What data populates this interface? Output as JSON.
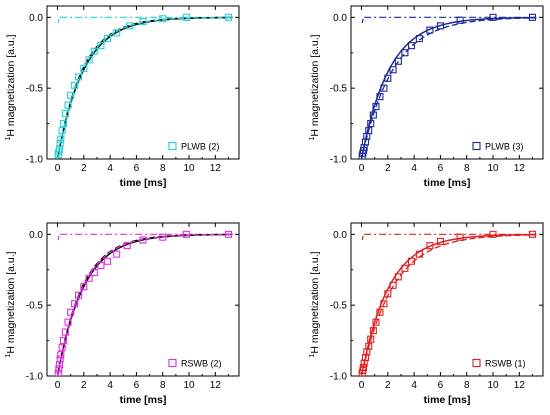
{
  "chart_data": [
    {
      "type": "scatter",
      "panel": "top-left",
      "legend_label": "PLWB (2)",
      "legend_position": "bottom-right",
      "color": "#22d3d8",
      "xlabel": "time [ms]",
      "ylabel_sup": "1",
      "ylabel": "H magnetization [a.u.]",
      "xlim": [
        -0.8,
        13.8
      ],
      "ylim": [
        -1.0,
        0.08
      ],
      "xticks": [
        "0",
        "2",
        "4",
        "6",
        "8",
        "10",
        "12"
      ],
      "yticks": [
        "-1.0",
        "-0.5",
        "0.0"
      ],
      "points": {
        "x": [
          0.05,
          0.1,
          0.15,
          0.2,
          0.25,
          0.35,
          0.45,
          0.6,
          0.8,
          1.0,
          1.3,
          1.6,
          2.0,
          2.4,
          2.8,
          3.3,
          3.8,
          4.5,
          5.5,
          6.5,
          8.0,
          9.8,
          13.0
        ],
        "y": [
          -0.97,
          -0.95,
          -0.93,
          -0.89,
          -0.86,
          -0.8,
          -0.75,
          -0.68,
          -0.62,
          -0.55,
          -0.48,
          -0.42,
          -0.36,
          -0.3,
          -0.24,
          -0.2,
          -0.15,
          -0.11,
          -0.06,
          -0.03,
          -0.01,
          0.0,
          0.0
        ]
      },
      "fit_solid_tau": 2.0,
      "fit_dashed_tau": 1.9,
      "dashdot_level": 0.0,
      "dashdot_xstart": 0.2
    },
    {
      "type": "scatter",
      "panel": "top-right",
      "legend_label": "PLWB (3)",
      "legend_position": "bottom-right",
      "color": "#1c2a9a",
      "xlabel": "time [ms]",
      "ylabel_sup": "1",
      "ylabel": "H magnetization [a.u.]",
      "xlim": [
        -0.8,
        13.8
      ],
      "ylim": [
        -1.0,
        0.08
      ],
      "xticks": [
        "0",
        "2",
        "4",
        "6",
        "8",
        "10",
        "12"
      ],
      "yticks": [
        "-1.0",
        "-0.5",
        "0.0"
      ],
      "points": {
        "x": [
          0.05,
          0.1,
          0.15,
          0.2,
          0.3,
          0.4,
          0.55,
          0.7,
          0.9,
          1.1,
          1.4,
          1.7,
          2.0,
          2.4,
          2.8,
          3.3,
          3.8,
          4.4,
          5.2,
          6.0,
          7.5,
          10.0,
          13.0
        ],
        "y": [
          -0.98,
          -0.96,
          -0.94,
          -0.92,
          -0.88,
          -0.84,
          -0.8,
          -0.75,
          -0.69,
          -0.63,
          -0.56,
          -0.5,
          -0.43,
          -0.37,
          -0.31,
          -0.25,
          -0.2,
          -0.15,
          -0.09,
          -0.06,
          -0.02,
          0.0,
          0.0
        ]
      },
      "fit_solid_tau": 2.1,
      "fit_dashed_tau": 2.4,
      "dashdot_level": 0.0,
      "dashdot_xstart": 0.2
    },
    {
      "type": "scatter",
      "panel": "bottom-left",
      "legend_label": "RSWB (2)",
      "legend_position": "bottom-right",
      "color": "#e030e0",
      "xlabel": "time [ms]",
      "ylabel_sup": "1",
      "ylabel": "H magnetization [a.u.]",
      "xlim": [
        -0.8,
        13.8
      ],
      "ylim": [
        -1.0,
        0.08
      ],
      "xticks": [
        "0",
        "2",
        "4",
        "6",
        "8",
        "10",
        "12"
      ],
      "yticks": [
        "-1.0",
        "-0.5",
        "0.0"
      ],
      "points": {
        "x": [
          0.05,
          0.1,
          0.15,
          0.2,
          0.25,
          0.35,
          0.45,
          0.6,
          0.8,
          1.0,
          1.3,
          1.6,
          2.0,
          2.4,
          2.8,
          3.3,
          3.8,
          4.5,
          5.3,
          6.5,
          8.0,
          9.8,
          13.0
        ],
        "y": [
          -0.98,
          -0.95,
          -0.92,
          -0.88,
          -0.85,
          -0.8,
          -0.75,
          -0.69,
          -0.62,
          -0.55,
          -0.49,
          -0.43,
          -0.37,
          -0.31,
          -0.27,
          -0.22,
          -0.19,
          -0.14,
          -0.08,
          -0.04,
          -0.02,
          0.0,
          0.0
        ]
      },
      "fit_solid_tau": 2.0,
      "fit_dashed_tau": 1.9,
      "dashdot_level": 0.0,
      "dashdot_xstart": 0.2
    },
    {
      "type": "scatter",
      "panel": "bottom-right",
      "legend_label": "RSWB (1)",
      "legend_position": "bottom-right",
      "color": "#e02020",
      "xlabel": "time [ms]",
      "ylabel_sup": "1",
      "ylabel": "H magnetization [a.u.]",
      "xlim": [
        -0.8,
        13.8
      ],
      "ylim": [
        -1.0,
        0.08
      ],
      "xticks": [
        "0",
        "2",
        "4",
        "6",
        "8",
        "10",
        "12"
      ],
      "yticks": [
        "-1.0",
        "-0.5",
        "0.0"
      ],
      "points": {
        "x": [
          0.05,
          0.1,
          0.15,
          0.2,
          0.3,
          0.4,
          0.55,
          0.7,
          0.9,
          1.1,
          1.4,
          1.7,
          2.0,
          2.4,
          2.8,
          3.3,
          3.8,
          4.4,
          5.2,
          6.0,
          7.5,
          10.0,
          13.0
        ],
        "y": [
          -0.98,
          -0.96,
          -0.94,
          -0.91,
          -0.87,
          -0.83,
          -0.79,
          -0.74,
          -0.68,
          -0.62,
          -0.55,
          -0.49,
          -0.42,
          -0.36,
          -0.3,
          -0.24,
          -0.19,
          -0.14,
          -0.08,
          -0.05,
          -0.02,
          0.0,
          0.0
        ]
      },
      "fit_solid_tau": 2.1,
      "fit_dashed_tau": 2.4,
      "dashdot_level": 0.0,
      "dashdot_xstart": 0.2
    }
  ]
}
